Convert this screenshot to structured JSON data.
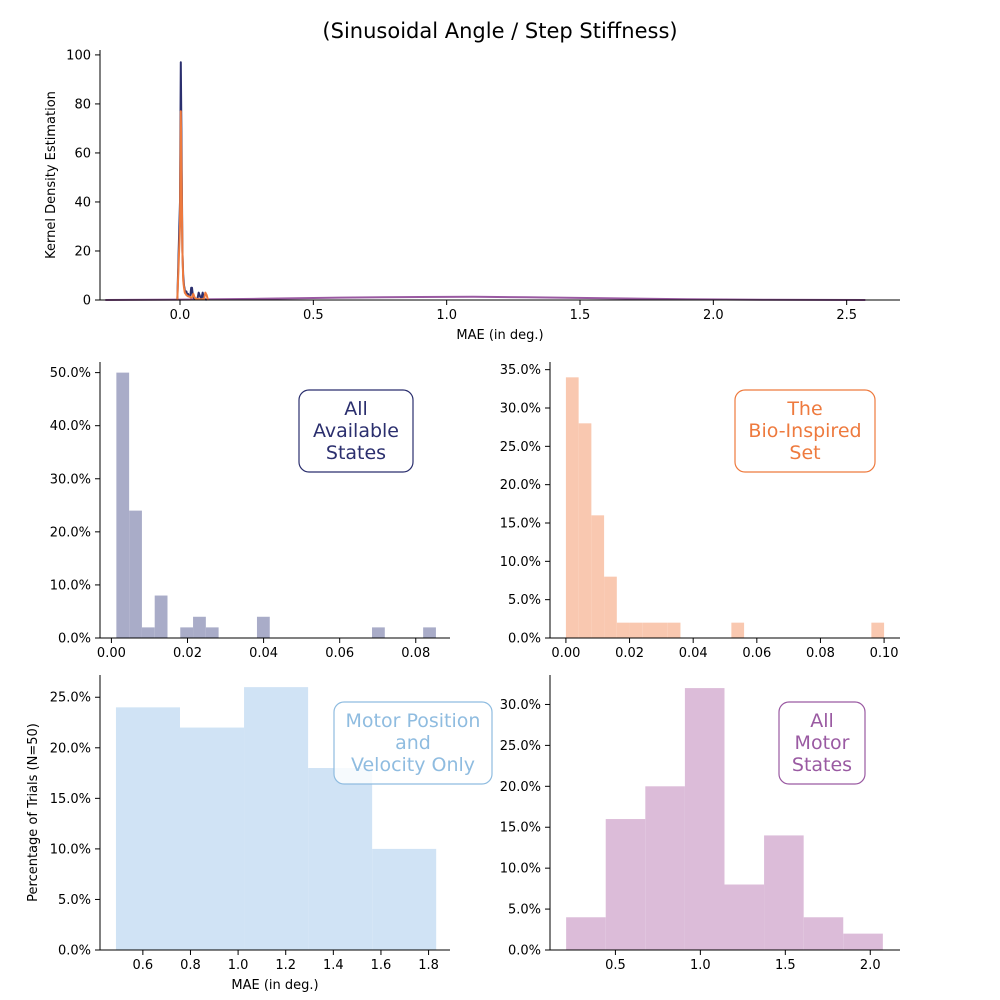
{
  "figure": {
    "title": "(Sinusoidal Angle / Step Stiffness)"
  },
  "chart_data": [
    {
      "type": "line",
      "panel": "kde",
      "xlabel": "MAE (in deg.)",
      "ylabel": "Kernel Density Estimation",
      "xlim": [
        -0.3,
        2.7
      ],
      "ylim": [
        0,
        102
      ],
      "xticks": [
        0.0,
        0.5,
        1.0,
        1.5,
        2.0,
        2.5
      ],
      "xtick_labels": [
        "0.0",
        "0.5",
        "1.0",
        "1.5",
        "2.0",
        "2.5"
      ],
      "yticks": [
        0,
        20,
        40,
        60,
        80,
        100
      ],
      "ytick_labels": [
        "0",
        "20",
        "40",
        "60",
        "80",
        "100"
      ],
      "series": [
        {
          "color": "#9a5aa2",
          "x": [
            -0.28,
            0.0,
            0.3,
            0.6,
            0.9,
            1.1,
            1.3,
            1.6,
            1.9,
            2.2,
            2.57
          ],
          "y": [
            0.01,
            0.15,
            0.5,
            0.95,
            1.25,
            1.3,
            1.1,
            0.7,
            0.3,
            0.08,
            0.01
          ]
        },
        {
          "color": "#2b2f6e",
          "x": [
            -0.01,
            0.0,
            0.003,
            0.006,
            0.009,
            0.012,
            0.015,
            0.018,
            0.021,
            0.024,
            0.027,
            0.03,
            0.033,
            0.036,
            0.039,
            0.042,
            0.045,
            0.048,
            0.051,
            0.055,
            0.06,
            0.065,
            0.07,
            0.075,
            0.08,
            0.085,
            0.09,
            0.1
          ],
          "y": [
            0,
            40,
            97,
            60,
            20,
            10,
            6,
            4,
            3,
            3.5,
            2,
            2.5,
            1.5,
            1.5,
            2,
            5,
            5,
            2,
            1,
            0.5,
            0.3,
            0.3,
            3,
            1.5,
            0.5,
            3,
            0.5,
            0
          ]
        },
        {
          "color": "#ee7a3e",
          "x": [
            -0.01,
            0.0,
            0.003,
            0.006,
            0.009,
            0.012,
            0.015,
            0.018,
            0.021,
            0.024,
            0.03,
            0.035,
            0.04,
            0.045,
            0.05,
            0.055,
            0.06,
            0.07,
            0.08,
            0.09,
            0.095,
            0.1,
            0.105
          ],
          "y": [
            0,
            30,
            77,
            50,
            20,
            8,
            5,
            3,
            2.5,
            2,
            1.5,
            1.5,
            1,
            1,
            2.5,
            1,
            0.5,
            0.3,
            0.3,
            0.3,
            3,
            2,
            0
          ]
        }
      ]
    },
    {
      "type": "bar",
      "panel": "hist-all-available",
      "label_box": "All\nAvailable\nStates",
      "color": "#a9acc8",
      "label_color": "#2b2f6e",
      "xlim": [
        -0.003,
        0.089
      ],
      "ylim": [
        0,
        52
      ],
      "xticks": [
        0.0,
        0.02,
        0.04,
        0.06,
        0.08
      ],
      "xtick_labels": [
        "0.00",
        "0.02",
        "0.04",
        "0.06",
        "0.08"
      ],
      "yticks": [
        0,
        10,
        20,
        30,
        40,
        50
      ],
      "ytick_labels": [
        "0.0%",
        "10.0%",
        "20.0%",
        "30.0%",
        "40.0%",
        "50.0%"
      ],
      "bin_start": 0.0013,
      "bin_width": 0.00336,
      "values": [
        50,
        24,
        2,
        8,
        0,
        2,
        4,
        2,
        0,
        0,
        0,
        4,
        0,
        0,
        0,
        0,
        0,
        0,
        0,
        0,
        2,
        0,
        0,
        0,
        2
      ]
    },
    {
      "type": "bar",
      "panel": "hist-bio-inspired",
      "label_box": "The\nBio-Inspired\nSet",
      "color": "#f9c8b0",
      "label_color": "#ee7a3e",
      "xlim": [
        -0.005,
        0.105
      ],
      "ylim": [
        0,
        36
      ],
      "xticks": [
        0.0,
        0.02,
        0.04,
        0.06,
        0.08,
        0.1
      ],
      "xtick_labels": [
        "0.00",
        "0.02",
        "0.04",
        "0.06",
        "0.08",
        "0.10"
      ],
      "yticks": [
        0,
        5,
        10,
        15,
        20,
        25,
        30,
        35
      ],
      "ytick_labels": [
        "0.0%",
        "5.0%",
        "10.0%",
        "15.0%",
        "20.0%",
        "25.0%",
        "30.0%",
        "35.0%"
      ],
      "bin_start": 0.0,
      "bin_width": 0.004,
      "values": [
        34,
        28,
        16,
        8,
        2,
        2,
        2,
        2,
        2,
        0,
        0,
        0,
        0,
        2,
        0,
        0,
        0,
        0,
        0,
        0,
        0,
        0,
        0,
        0,
        2
      ]
    },
    {
      "type": "bar",
      "panel": "hist-motor-pos-vel",
      "label_box": "Motor Position\nand\nVelocity Only",
      "color": "#d0e3f5",
      "label_color": "#8fbce0",
      "xlabel": "MAE (in deg.)",
      "ylabel": "Percentage of Trials (N=50)",
      "xlim": [
        0.42,
        1.89
      ],
      "ylim": [
        0,
        27.2
      ],
      "xticks": [
        0.6,
        0.8,
        1.0,
        1.2,
        1.4,
        1.6,
        1.8
      ],
      "xtick_labels": [
        "0.6",
        "0.8",
        "1.0",
        "1.2",
        "1.4",
        "1.6",
        "1.8"
      ],
      "yticks": [
        0,
        5,
        10,
        15,
        20,
        25
      ],
      "ytick_labels": [
        "0.0%",
        "5.0%",
        "10.0%",
        "15.0%",
        "20.0%",
        "25.0%"
      ],
      "bin_start": 0.487,
      "bin_width": 0.269,
      "values": [
        24,
        22,
        26,
        18,
        10
      ]
    },
    {
      "type": "bar",
      "panel": "hist-all-motor",
      "label_box": "All\nMotor\nStates",
      "color": "#dcbcd9",
      "label_color": "#9a5aa2",
      "xlim": [
        0.115,
        2.175
      ],
      "ylim": [
        0,
        33.6
      ],
      "xticks": [
        0.5,
        1.0,
        1.5,
        2.0
      ],
      "xtick_labels": [
        "0.5",
        "1.0",
        "1.5",
        "2.0"
      ],
      "yticks": [
        0,
        5,
        10,
        15,
        20,
        25,
        30
      ],
      "ytick_labels": [
        "0.0%",
        "5.0%",
        "10.0%",
        "15.0%",
        "20.0%",
        "25.0%",
        "30.0%"
      ],
      "bin_start": 0.21,
      "bin_width": 0.233,
      "values": [
        4,
        16,
        20,
        32,
        8,
        14,
        4,
        2
      ]
    }
  ]
}
